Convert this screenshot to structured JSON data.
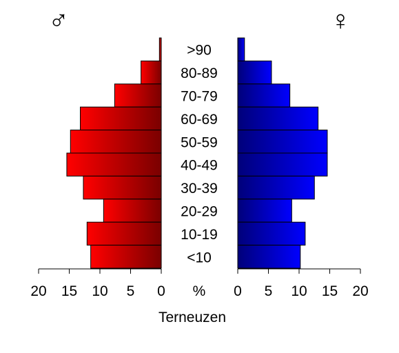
{
  "chart_data": {
    "type": "bar",
    "subtype": "population-pyramid",
    "title": "",
    "xlabel": "Terneuzen",
    "center_unit_label": "%",
    "categories": [
      ">90",
      "80-89",
      "70-79",
      "60-69",
      "50-59",
      "40-49",
      "30-39",
      "20-29",
      "10-19",
      "<10"
    ],
    "series": [
      {
        "name": "♂",
        "side": "left",
        "values": [
          0.3,
          3.3,
          7.6,
          13.2,
          14.8,
          15.4,
          12.7,
          9.4,
          12.1,
          11.5
        ],
        "color_light": "#ff0000",
        "color_dark": "#7a0000"
      },
      {
        "name": "♀",
        "side": "right",
        "values": [
          1.1,
          5.5,
          8.5,
          13.1,
          14.6,
          14.6,
          12.5,
          8.8,
          11.0,
          10.2
        ],
        "color_light": "#0000ff",
        "color_dark": "#00007a"
      }
    ],
    "xlim": [
      0,
      20
    ],
    "ticks": [
      0,
      5,
      10,
      15,
      20
    ],
    "tick_labels": [
      "0",
      "5",
      "10",
      "15",
      "20"
    ],
    "legend": "none",
    "grid": false
  }
}
